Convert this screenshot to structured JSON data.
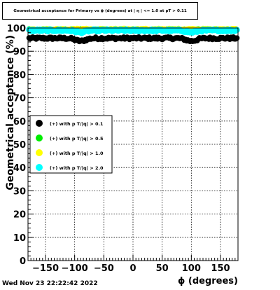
{
  "chart_data": {
    "type": "scatter",
    "title": "Geometrical acceptance for Primary vs ϕ (degrees) at | η | <= 1.0 at pT > 0.11",
    "xlabel": "ϕ (degrees)",
    "ylabel": "Geometrical acceptance (%)",
    "xlim": [
      -180,
      180
    ],
    "ylim": [
      0,
      100
    ],
    "xticks": [
      -150,
      -100,
      -50,
      0,
      50,
      100,
      150
    ],
    "xtick_labels": [
      "−150",
      "−100",
      "−50",
      "0",
      "50",
      "100",
      "150"
    ],
    "yticks": [
      0,
      10,
      20,
      30,
      40,
      50,
      60,
      70,
      80,
      90,
      100
    ],
    "grid": true,
    "legend_position": "middle-left",
    "series": [
      {
        "name": "(+) with p T/|q| > 0.1",
        "color": "#000000",
        "x_range": [
          -178,
          178
        ],
        "y_base": 95.6,
        "y_jitter": 0.5
      },
      {
        "name": "(+) with p T/|q| > 0.5",
        "color": "#00ee00",
        "x_range": [
          -178,
          178
        ],
        "y_base": 99.3,
        "y_jitter": 0.3
      },
      {
        "name": "(+) with p T/|q| > 1.0",
        "color": "#ffff00",
        "x_range": [
          -178,
          178
        ],
        "y_base": 99.5,
        "y_jitter": 0.3
      },
      {
        "name": "(+) with p T/|q| > 2.0",
        "color": "#00ffff",
        "x_range": [
          -178,
          178
        ],
        "y_base": 99.0,
        "y_jitter": 0.4
      }
    ],
    "dips": [
      {
        "series": 0,
        "phi": -90,
        "depth": 1.2
      },
      {
        "series": 0,
        "phi": 100,
        "depth": 1.2
      },
      {
        "series": 3,
        "phi": -90,
        "depth": 0.8
      },
      {
        "series": 3,
        "phi": 100,
        "depth": 0.8
      }
    ]
  },
  "footer": {
    "timestamp": "Wed Nov 23 22:22:42 2022"
  }
}
